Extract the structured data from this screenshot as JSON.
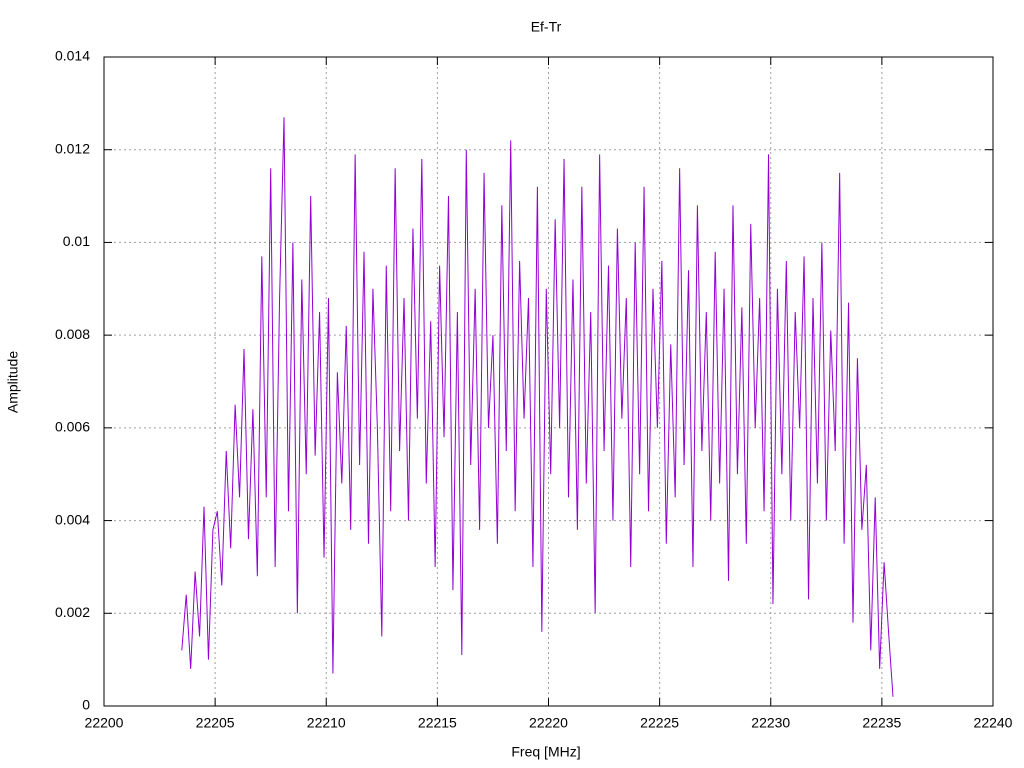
{
  "chart_data": {
    "type": "line",
    "title": "Ef-Tr",
    "xlabel": "Freq [MHz]",
    "ylabel": "Amplitude",
    "color": "#9400d3",
    "grid": true,
    "xlim": [
      22200,
      22240
    ],
    "xticks": [
      22200,
      22205,
      22210,
      22215,
      22220,
      22225,
      22230,
      22235,
      22240
    ],
    "ylim": [
      0,
      0.014
    ],
    "yticks": [
      0,
      0.002,
      0.004,
      0.006,
      0.008,
      0.01,
      0.012,
      0.014
    ],
    "x": [
      22203.5,
      22203.7,
      22203.9,
      22204.1,
      22204.3,
      22204.5,
      22204.7,
      22204.9,
      22205.1,
      22205.3,
      22205.5,
      22205.7,
      22205.9,
      22206.1,
      22206.3,
      22206.5,
      22206.7,
      22206.9,
      22207.1,
      22207.3,
      22207.5,
      22207.7,
      22207.9,
      22208.1,
      22208.3,
      22208.5,
      22208.7,
      22208.9,
      22209.1,
      22209.3,
      22209.5,
      22209.7,
      22209.9,
      22210.1,
      22210.3,
      22210.5,
      22210.7,
      22210.9,
      22211.1,
      22211.3,
      22211.5,
      22211.7,
      22211.9,
      22212.1,
      22212.3,
      22212.5,
      22212.7,
      22212.9,
      22213.1,
      22213.3,
      22213.5,
      22213.7,
      22213.9,
      22214.1,
      22214.3,
      22214.5,
      22214.7,
      22214.9,
      22215.1,
      22215.3,
      22215.5,
      22215.7,
      22215.9,
      22216.1,
      22216.3,
      22216.5,
      22216.7,
      22216.9,
      22217.1,
      22217.3,
      22217.5,
      22217.7,
      22217.9,
      22218.1,
      22218.3,
      22218.5,
      22218.7,
      22218.9,
      22219.1,
      22219.3,
      22219.5,
      22219.7,
      22219.9,
      22220.1,
      22220.3,
      22220.5,
      22220.7,
      22220.9,
      22221.1,
      22221.3,
      22221.5,
      22221.7,
      22221.9,
      22222.1,
      22222.3,
      22222.5,
      22222.7,
      22222.9,
      22223.1,
      22223.3,
      22223.5,
      22223.7,
      22223.9,
      22224.1,
      22224.3,
      22224.5,
      22224.7,
      22224.9,
      22225.1,
      22225.3,
      22225.5,
      22225.7,
      22225.9,
      22226.1,
      22226.3,
      22226.5,
      22226.7,
      22226.9,
      22227.1,
      22227.3,
      22227.5,
      22227.7,
      22227.9,
      22228.1,
      22228.3,
      22228.5,
      22228.7,
      22228.9,
      22229.1,
      22229.3,
      22229.5,
      22229.7,
      22229.9,
      22230.1,
      22230.3,
      22230.5,
      22230.7,
      22230.9,
      22231.1,
      22231.3,
      22231.5,
      22231.7,
      22231.9,
      22232.1,
      22232.3,
      22232.5,
      22232.7,
      22232.9,
      22233.1,
      22233.3,
      22233.5,
      22233.7,
      22233.9,
      22234.1,
      22234.3,
      22234.5,
      22234.7,
      22234.9,
      22235.1,
      22235.3,
      22235.5
    ],
    "values": [
      0.0012,
      0.0024,
      0.0008,
      0.0029,
      0.0015,
      0.0043,
      0.001,
      0.0038,
      0.0042,
      0.0026,
      0.0055,
      0.0034,
      0.0065,
      0.0045,
      0.0077,
      0.0036,
      0.0064,
      0.0028,
      0.0097,
      0.0045,
      0.0116,
      0.003,
      0.0088,
      0.0127,
      0.0042,
      0.01,
      0.002,
      0.0092,
      0.005,
      0.011,
      0.0054,
      0.0085,
      0.0032,
      0.0088,
      0.0007,
      0.0072,
      0.0048,
      0.0082,
      0.0038,
      0.0119,
      0.0052,
      0.0098,
      0.0035,
      0.009,
      0.006,
      0.0015,
      0.0095,
      0.0042,
      0.0116,
      0.0055,
      0.0088,
      0.004,
      0.0103,
      0.0062,
      0.0118,
      0.0048,
      0.0083,
      0.003,
      0.0095,
      0.0058,
      0.011,
      0.0025,
      0.0085,
      0.0011,
      0.012,
      0.0052,
      0.009,
      0.0038,
      0.0115,
      0.006,
      0.008,
      0.0035,
      0.0108,
      0.0055,
      0.0122,
      0.0042,
      0.0096,
      0.0062,
      0.0088,
      0.003,
      0.0112,
      0.0016,
      0.009,
      0.005,
      0.0105,
      0.006,
      0.0118,
      0.0045,
      0.0092,
      0.0038,
      0.0112,
      0.0048,
      0.0085,
      0.002,
      0.0119,
      0.0055,
      0.0095,
      0.004,
      0.0103,
      0.0062,
      0.0088,
      0.003,
      0.01,
      0.005,
      0.0112,
      0.0042,
      0.009,
      0.006,
      0.0096,
      0.0035,
      0.0078,
      0.0045,
      0.0116,
      0.0052,
      0.0094,
      0.003,
      0.0108,
      0.0055,
      0.0085,
      0.004,
      0.0098,
      0.0048,
      0.009,
      0.0027,
      0.0108,
      0.005,
      0.0086,
      0.0035,
      0.0104,
      0.006,
      0.0088,
      0.0042,
      0.0119,
      0.0022,
      0.009,
      0.005,
      0.0096,
      0.004,
      0.0085,
      0.006,
      0.0097,
      0.0023,
      0.0088,
      0.0048,
      0.01,
      0.004,
      0.0081,
      0.0055,
      0.0115,
      0.0035,
      0.0087,
      0.0018,
      0.0075,
      0.0038,
      0.0052,
      0.0012,
      0.0045,
      0.0008,
      0.0031,
      0.0016,
      0.0002
    ]
  }
}
